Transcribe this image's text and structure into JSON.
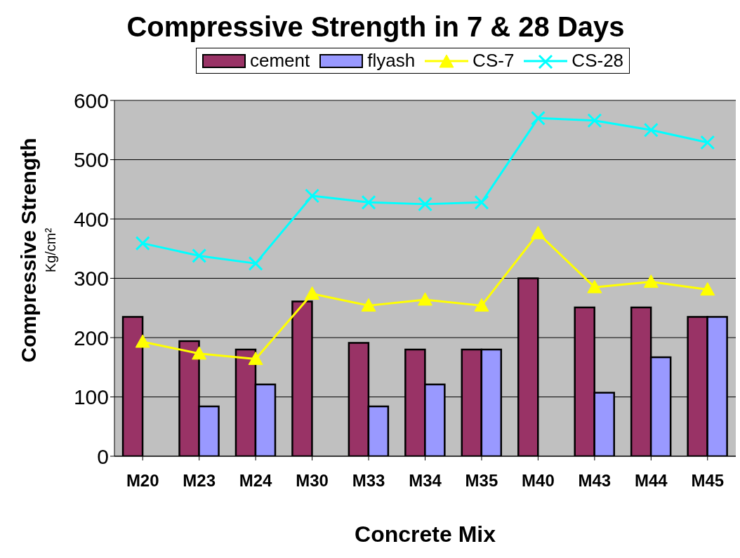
{
  "chart_data": {
    "type": "bar",
    "title": "Compressive Strength in 7 & 28 Days",
    "xlabel": "Concrete Mix",
    "ylabel": "Compressive Strength\nKg/cm²",
    "categories": [
      "M20",
      "M23",
      "M24",
      "M30",
      "M33",
      "M34",
      "M35",
      "M40",
      "M43",
      "M44",
      "M45"
    ],
    "series": [
      {
        "name": "cement",
        "color": "#993366",
        "values": [
          235,
          194,
          180,
          261,
          191,
          180,
          180,
          300,
          251,
          251,
          235
        ]
      },
      {
        "name": "flyash",
        "color": "#9999ff",
        "values": [
          null,
          84,
          121,
          null,
          84,
          121,
          180,
          null,
          107,
          167,
          235
        ]
      },
      {
        "name": "CS-7",
        "type": "line",
        "color": "#ffff00",
        "marker": "triangle",
        "values": [
          193,
          173,
          164,
          274,
          254,
          264,
          254,
          376,
          285,
          294,
          281
        ]
      },
      {
        "name": "CS-28",
        "type": "line",
        "color": "#00ffff",
        "marker": "cross",
        "values": [
          359,
          338,
          325,
          439,
          428,
          425,
          428,
          570,
          566,
          550,
          529
        ]
      }
    ],
    "ylim": [
      0,
      600
    ],
    "yticks": [
      0,
      100,
      200,
      300,
      400,
      500,
      600
    ],
    "grid": "y",
    "legend": "top"
  }
}
